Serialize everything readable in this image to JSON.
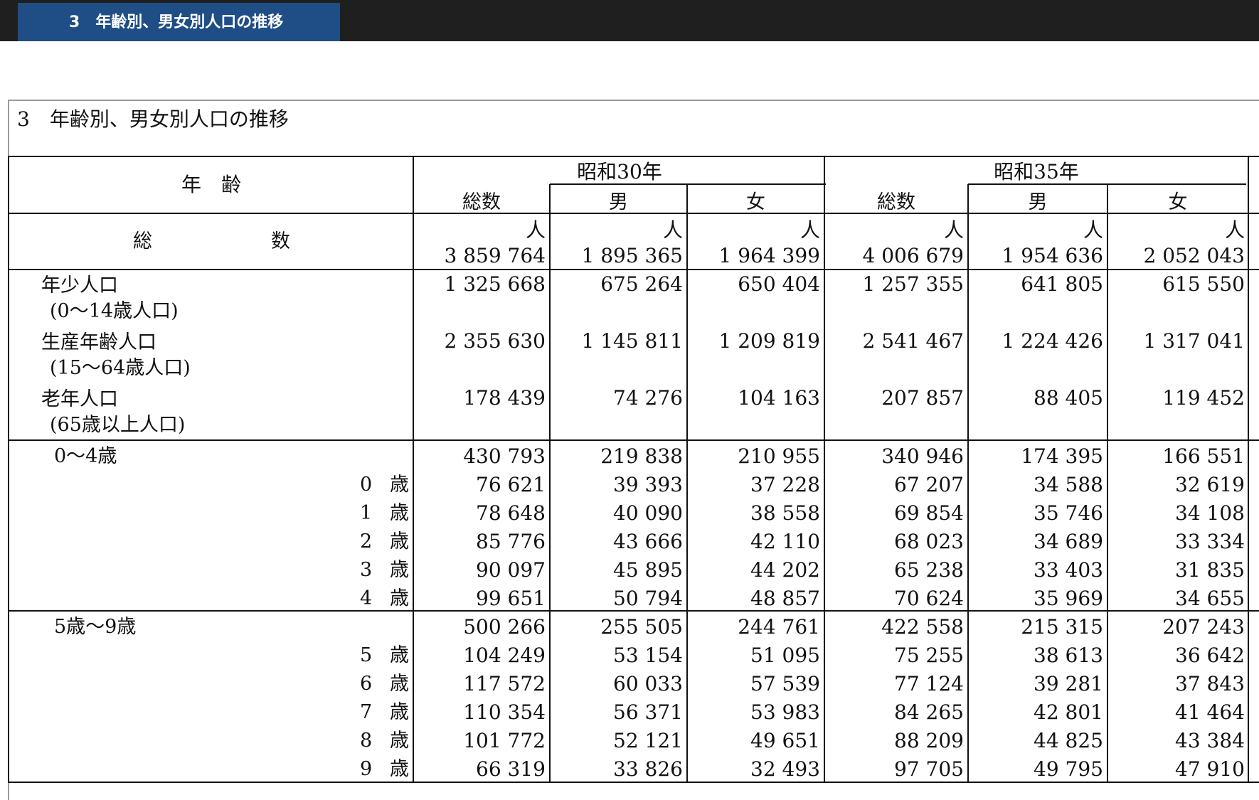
{
  "tab": {
    "label": "3　年齢別、男女別人口の推移"
  },
  "title": "3　年齢別、男女別人口の推移",
  "header": {
    "age_label": "年　齢",
    "year1": "昭和30年",
    "year2": "昭和35年",
    "cols": [
      "総数",
      "男",
      "女",
      "総数",
      "男",
      "女"
    ],
    "unit": "人"
  },
  "totals": {
    "label_a": "総",
    "label_b": "数",
    "values": [
      "3 859 764",
      "1 895 365",
      "1 964 399",
      "4 006 679",
      "1 954 636",
      "2 052 043"
    ]
  },
  "groups": [
    {
      "label": "年少人口",
      "sub": "(0〜14歳人口)",
      "values": [
        "1 325 668",
        "675 264",
        "650 404",
        "1 257 355",
        "641 805",
        "615 550"
      ]
    },
    {
      "label": "生産年齢人口",
      "sub": "(15〜64歳人口)",
      "values": [
        "2 355 630",
        "1 145 811",
        "1 209 819",
        "2 541 467",
        "1 224 426",
        "1 317 041"
      ]
    },
    {
      "label": "老年人口",
      "sub": "(65歳以上人口)",
      "values": [
        "178 439",
        "74 276",
        "104 163",
        "207 857",
        "88 405",
        "119 452"
      ]
    }
  ],
  "blocks": [
    {
      "label": "0〜4歳",
      "values": [
        "430 793",
        "219 838",
        "210 955",
        "340 946",
        "174 395",
        "166 551"
      ],
      "rows": [
        {
          "age": "0",
          "unit": "歳",
          "values": [
            "76 621",
            "39 393",
            "37 228",
            "67 207",
            "34 588",
            "32 619"
          ]
        },
        {
          "age": "1",
          "unit": "歳",
          "values": [
            "78 648",
            "40 090",
            "38 558",
            "69 854",
            "35 746",
            "34 108"
          ]
        },
        {
          "age": "2",
          "unit": "歳",
          "values": [
            "85 776",
            "43 666",
            "42 110",
            "68 023",
            "34 689",
            "33 334"
          ]
        },
        {
          "age": "3",
          "unit": "歳",
          "values": [
            "90 097",
            "45 895",
            "44 202",
            "65 238",
            "33 403",
            "31 835"
          ]
        },
        {
          "age": "4",
          "unit": "歳",
          "values": [
            "99 651",
            "50 794",
            "48 857",
            "70 624",
            "35 969",
            "34 655"
          ]
        }
      ]
    },
    {
      "label": "5歳〜9歳",
      "values": [
        "500 266",
        "255 505",
        "244 761",
        "422 558",
        "215 315",
        "207 243"
      ],
      "rows": [
        {
          "age": "5",
          "unit": "歳",
          "values": [
            "104 249",
            "53 154",
            "51 095",
            "75 255",
            "38 613",
            "36 642"
          ]
        },
        {
          "age": "6",
          "unit": "歳",
          "values": [
            "117 572",
            "60 033",
            "57 539",
            "77 124",
            "39 281",
            "37 843"
          ]
        },
        {
          "age": "7",
          "unit": "歳",
          "values": [
            "110 354",
            "56 371",
            "53 983",
            "84 265",
            "42 801",
            "41 464"
          ]
        },
        {
          "age": "8",
          "unit": "歳",
          "values": [
            "101 772",
            "52 121",
            "49 651",
            "88 209",
            "44 825",
            "43 384"
          ]
        },
        {
          "age": "9",
          "unit": "歳",
          "values": [
            "66 319",
            "33 826",
            "32 493",
            "97 705",
            "49 795",
            "47 910"
          ]
        }
      ]
    }
  ]
}
